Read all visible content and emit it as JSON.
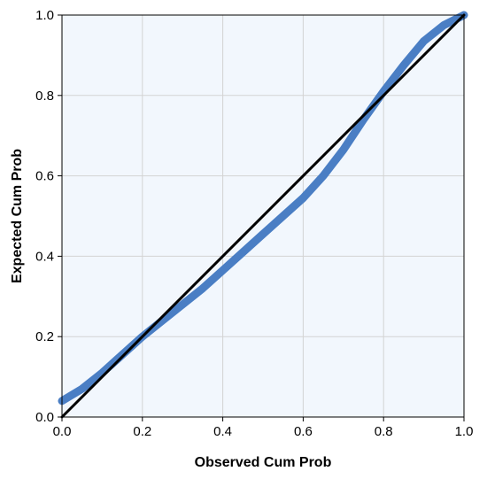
{
  "chart_data": {
    "type": "line",
    "xlabel": "Observed Cum Prob",
    "ylabel": "Expected Cum Prob",
    "xlim": [
      0.0,
      1.0
    ],
    "ylim": [
      0.0,
      1.0
    ],
    "x_ticks": [
      "0.0",
      "0.2",
      "0.4",
      "0.6",
      "0.8",
      "1.0"
    ],
    "y_ticks": [
      "0.0",
      "0.2",
      "0.4",
      "0.6",
      "0.8",
      "1.0"
    ],
    "grid": true,
    "legend": "none",
    "series": [
      {
        "color": "#4a7ec4",
        "x": [
          0.0,
          0.05,
          0.1,
          0.15,
          0.2,
          0.25,
          0.3,
          0.35,
          0.4,
          0.45,
          0.5,
          0.55,
          0.6,
          0.65,
          0.7,
          0.75,
          0.8,
          0.85,
          0.9,
          0.95,
          1.0
        ],
        "y": [
          0.04,
          0.07,
          0.11,
          0.155,
          0.2,
          0.24,
          0.28,
          0.32,
          0.365,
          0.41,
          0.455,
          0.5,
          0.545,
          0.6,
          0.665,
          0.74,
          0.81,
          0.875,
          0.935,
          0.975,
          1.0
        ]
      },
      {
        "color": "#000000",
        "x": [
          0.0,
          1.0
        ],
        "y": [
          0.0,
          1.0
        ]
      }
    ]
  },
  "colors": {
    "plot_background": "#f2f7fd",
    "grid": "#d3d3d3",
    "axis": "#000000"
  }
}
